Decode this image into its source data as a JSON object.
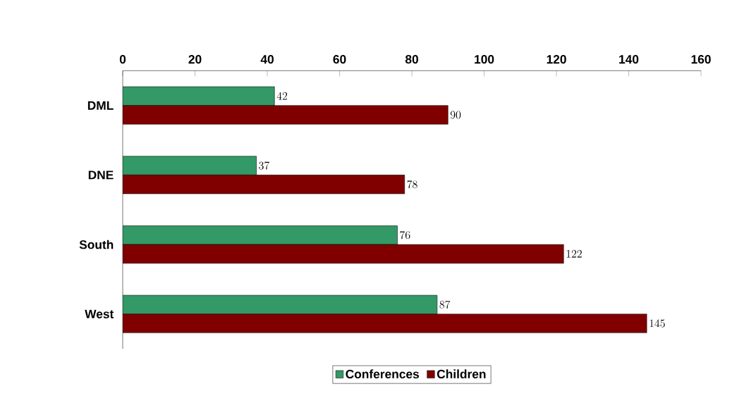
{
  "chart_data": {
    "type": "bar",
    "orientation": "horizontal",
    "categories": [
      "DML",
      "DNE",
      "South",
      "West"
    ],
    "series": [
      {
        "name": "Conferences",
        "color": "#339966",
        "values": [
          42,
          37,
          76,
          87
        ]
      },
      {
        "name": "Children",
        "color": "#800000",
        "values": [
          90,
          78,
          122,
          145
        ]
      }
    ],
    "xlim": [
      0,
      160
    ],
    "xticks": [
      0,
      20,
      40,
      60,
      80,
      100,
      120,
      140,
      160
    ],
    "data_labels": true,
    "legend": "bottom"
  }
}
